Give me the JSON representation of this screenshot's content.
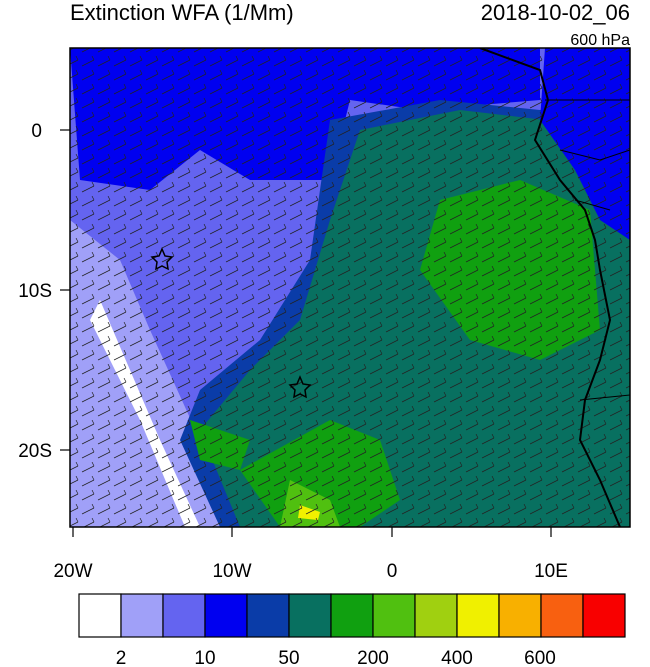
{
  "header": {
    "title": "Extinction WFA (1/Mm)",
    "time": "2018-10-02_06",
    "level": "600 hPa"
  },
  "axes": {
    "lat_labels": [
      "0",
      "10S",
      "20S"
    ],
    "lon_labels": [
      "20W",
      "10W",
      "0",
      "10E"
    ]
  },
  "colorbar": {
    "colors": [
      "#ffffff",
      "#a0a0f8",
      "#6464f0",
      "#0000f0",
      "#0a3ca8",
      "#087060",
      "#10a010",
      "#50c010",
      "#a0d010",
      "#f0f000",
      "#f8b000",
      "#f86010",
      "#f80000"
    ],
    "labels": [
      "2",
      "10",
      "50",
      "200",
      "400",
      "600"
    ]
  }
}
